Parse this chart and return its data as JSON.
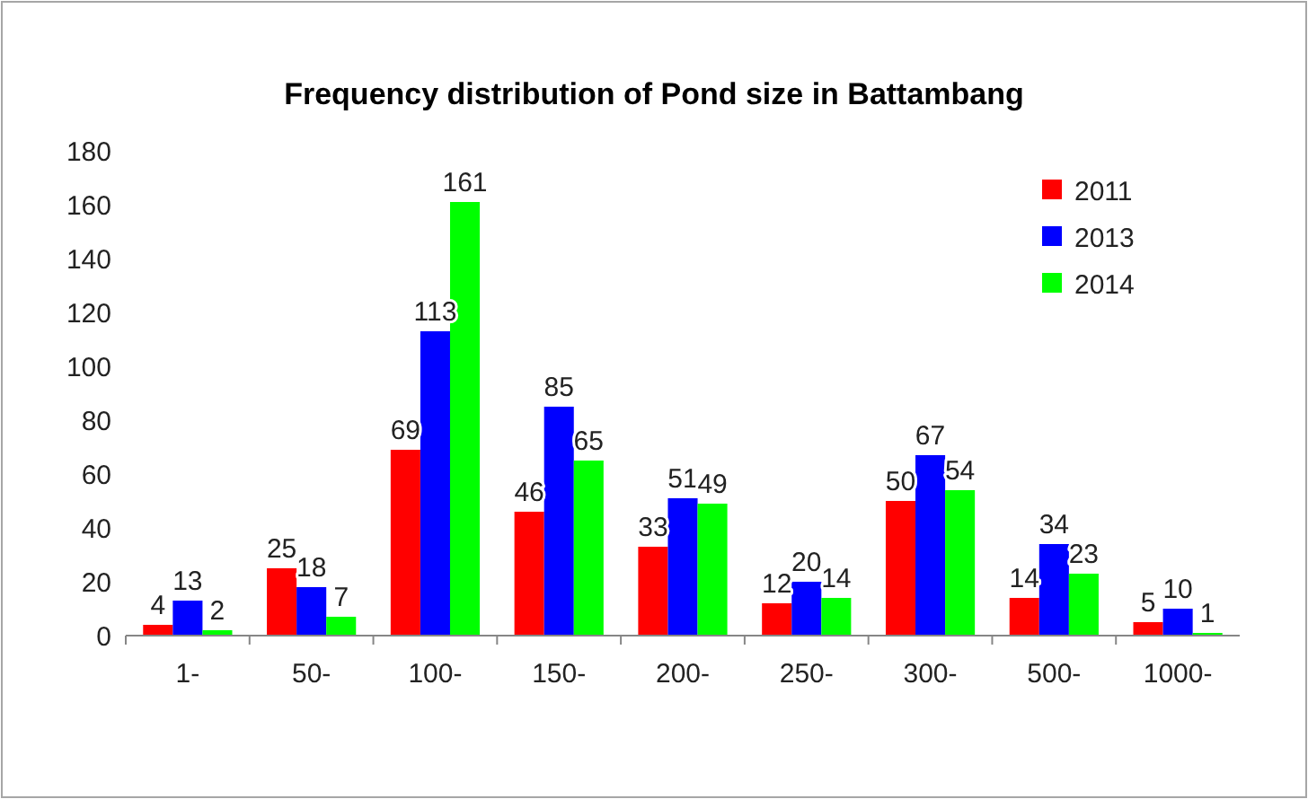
{
  "chart_data": {
    "type": "bar",
    "title": "Frequency distribution of Pond size in Battambang",
    "categories": [
      "1-",
      "50-",
      "100-",
      "150-",
      "200-",
      "250-",
      "300-",
      "500-",
      "1000-"
    ],
    "series": [
      {
        "name": "2011",
        "color": "#ff0000",
        "values": [
          4,
          25,
          69,
          46,
          33,
          12,
          50,
          14,
          5
        ]
      },
      {
        "name": "2013",
        "color": "#0000ff",
        "values": [
          13,
          18,
          113,
          85,
          51,
          20,
          67,
          34,
          10
        ]
      },
      {
        "name": "2014",
        "color": "#00ff00",
        "values": [
          2,
          7,
          161,
          65,
          49,
          14,
          54,
          23,
          1
        ]
      }
    ],
    "ylim": [
      0,
      180
    ],
    "yticks": [
      0,
      20,
      40,
      60,
      80,
      100,
      120,
      140,
      160,
      180
    ],
    "data_labels": true,
    "legend": "top right",
    "grid": false
  }
}
